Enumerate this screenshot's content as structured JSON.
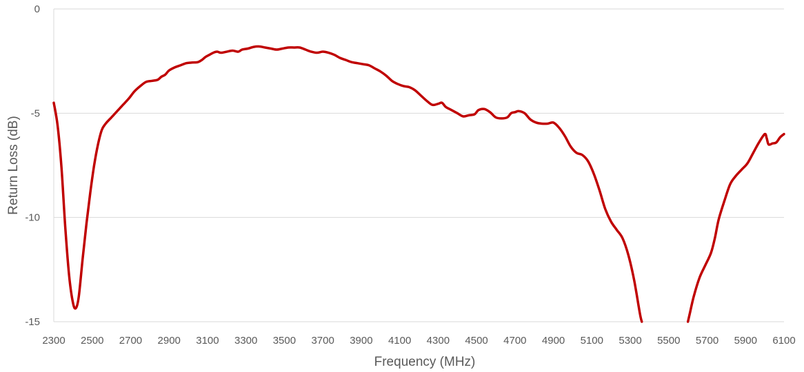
{
  "chart_data": {
    "type": "line",
    "title": "",
    "xlabel": "Frequency (MHz)",
    "ylabel": "Return Loss (dB)",
    "xlim": [
      2300,
      6100
    ],
    "ylim": [
      -15,
      0
    ],
    "x_ticks": [
      2300,
      2500,
      2700,
      2900,
      3100,
      3300,
      3500,
      3700,
      3900,
      4100,
      4300,
      4500,
      4700,
      4900,
      5100,
      5300,
      5500,
      5700,
      5900,
      6100
    ],
    "y_ticks": [
      0,
      -5,
      -10,
      -15
    ],
    "x_tick_labels": [
      "2300",
      "2500",
      "2700",
      "2900",
      "3100",
      "3300",
      "3500",
      "3700",
      "3900",
      "4100",
      "4300",
      "4500",
      "4700",
      "4900",
      "5100",
      "5300",
      "5500",
      "5700",
      "5900",
      "6100"
    ],
    "y_tick_labels": [
      "0",
      "-5",
      "-10",
      "-15"
    ],
    "grid": "horizontal",
    "legend": "none",
    "colors": {
      "series": "#c00000",
      "grid": "#d9d9d9",
      "text": "#595959"
    },
    "series": [
      {
        "segments": [
          [
            [
              2300,
              -4.5
            ],
            [
              2320,
              -5.6
            ],
            [
              2340,
              -7.6
            ],
            [
              2360,
              -10.5
            ],
            [
              2380,
              -12.8
            ],
            [
              2400,
              -14.1
            ],
            [
              2415,
              -14.35
            ],
            [
              2430,
              -13.8
            ],
            [
              2450,
              -12.0
            ],
            [
              2470,
              -10.3
            ],
            [
              2490,
              -8.8
            ],
            [
              2510,
              -7.5
            ],
            [
              2530,
              -6.5
            ],
            [
              2550,
              -5.8
            ],
            [
              2570,
              -5.5
            ],
            [
              2600,
              -5.2
            ],
            [
              2630,
              -4.9
            ],
            [
              2660,
              -4.6
            ],
            [
              2690,
              -4.3
            ],
            [
              2720,
              -3.95
            ],
            [
              2750,
              -3.7
            ],
            [
              2780,
              -3.5
            ],
            [
              2810,
              -3.45
            ],
            [
              2840,
              -3.4
            ],
            [
              2860,
              -3.25
            ],
            [
              2880,
              -3.15
            ],
            [
              2900,
              -2.95
            ],
            [
              2930,
              -2.8
            ],
            [
              2960,
              -2.7
            ],
            [
              2990,
              -2.6
            ],
            [
              3020,
              -2.57
            ],
            [
              3050,
              -2.55
            ],
            [
              3070,
              -2.45
            ],
            [
              3090,
              -2.3
            ],
            [
              3110,
              -2.2
            ],
            [
              3130,
              -2.1
            ],
            [
              3150,
              -2.05
            ],
            [
              3170,
              -2.1
            ],
            [
              3200,
              -2.05
            ],
            [
              3230,
              -2.0
            ],
            [
              3260,
              -2.05
            ],
            [
              3280,
              -1.95
            ],
            [
              3310,
              -1.9
            ],
            [
              3340,
              -1.82
            ],
            [
              3370,
              -1.8
            ],
            [
              3400,
              -1.85
            ],
            [
              3430,
              -1.9
            ],
            [
              3460,
              -1.95
            ],
            [
              3490,
              -1.9
            ],
            [
              3520,
              -1.85
            ],
            [
              3550,
              -1.85
            ],
            [
              3580,
              -1.85
            ],
            [
              3610,
              -1.95
            ],
            [
              3640,
              -2.05
            ],
            [
              3670,
              -2.1
            ],
            [
              3700,
              -2.05
            ],
            [
              3730,
              -2.1
            ],
            [
              3760,
              -2.2
            ],
            [
              3790,
              -2.35
            ],
            [
              3820,
              -2.45
            ],
            [
              3850,
              -2.55
            ],
            [
              3880,
              -2.6
            ],
            [
              3910,
              -2.65
            ],
            [
              3940,
              -2.7
            ],
            [
              3970,
              -2.85
            ],
            [
              4000,
              -3.0
            ],
            [
              4030,
              -3.2
            ],
            [
              4060,
              -3.45
            ],
            [
              4090,
              -3.6
            ],
            [
              4120,
              -3.7
            ],
            [
              4150,
              -3.75
            ],
            [
              4180,
              -3.9
            ],
            [
              4210,
              -4.15
            ],
            [
              4240,
              -4.4
            ],
            [
              4270,
              -4.6
            ],
            [
              4300,
              -4.55
            ],
            [
              4320,
              -4.5
            ],
            [
              4340,
              -4.7
            ],
            [
              4370,
              -4.85
            ],
            [
              4400,
              -5.0
            ],
            [
              4430,
              -5.15
            ],
            [
              4460,
              -5.1
            ],
            [
              4490,
              -5.05
            ],
            [
              4510,
              -4.85
            ],
            [
              4540,
              -4.8
            ],
            [
              4570,
              -4.95
            ],
            [
              4600,
              -5.2
            ],
            [
              4630,
              -5.25
            ],
            [
              4660,
              -5.2
            ],
            [
              4680,
              -5.0
            ],
            [
              4700,
              -4.95
            ],
            [
              4720,
              -4.9
            ],
            [
              4750,
              -5.0
            ],
            [
              4780,
              -5.3
            ],
            [
              4810,
              -5.45
            ],
            [
              4840,
              -5.5
            ],
            [
              4870,
              -5.5
            ],
            [
              4900,
              -5.45
            ],
            [
              4930,
              -5.7
            ],
            [
              4960,
              -6.1
            ],
            [
              4990,
              -6.6
            ],
            [
              5020,
              -6.9
            ],
            [
              5050,
              -7.0
            ],
            [
              5080,
              -7.3
            ],
            [
              5110,
              -7.9
            ],
            [
              5140,
              -8.7
            ],
            [
              5170,
              -9.6
            ],
            [
              5200,
              -10.2
            ],
            [
              5230,
              -10.6
            ],
            [
              5260,
              -11.0
            ],
            [
              5290,
              -11.8
            ],
            [
              5320,
              -13.0
            ],
            [
              5350,
              -14.6
            ],
            [
              5360,
              -15.0
            ]
          ],
          [
            [
              5600,
              -15.0
            ],
            [
              5610,
              -14.6
            ],
            [
              5630,
              -13.8
            ],
            [
              5660,
              -12.9
            ],
            [
              5690,
              -12.3
            ],
            [
              5720,
              -11.7
            ],
            [
              5740,
              -11.0
            ],
            [
              5760,
              -10.1
            ],
            [
              5790,
              -9.2
            ],
            [
              5820,
              -8.4
            ],
            [
              5850,
              -8.0
            ],
            [
              5880,
              -7.7
            ],
            [
              5910,
              -7.4
            ],
            [
              5940,
              -6.9
            ],
            [
              5970,
              -6.4
            ],
            [
              6000,
              -6.0
            ],
            [
              6010,
              -6.2
            ],
            [
              6020,
              -6.5
            ],
            [
              6040,
              -6.45
            ],
            [
              6060,
              -6.4
            ],
            [
              6080,
              -6.15
            ],
            [
              6100,
              -6.0
            ]
          ]
        ]
      }
    ]
  }
}
